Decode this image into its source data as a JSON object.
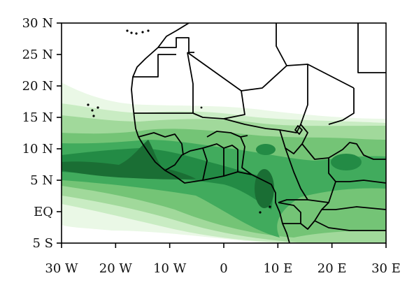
{
  "map": {
    "type": "filled-contour map",
    "region": "West Africa",
    "lon_range": [
      -30,
      30
    ],
    "lat_range": [
      -5,
      30
    ],
    "y_ticks": [
      {
        "value": 30,
        "label": "30 N"
      },
      {
        "value": 25,
        "label": "25 N"
      },
      {
        "value": 20,
        "label": "20 N"
      },
      {
        "value": 15,
        "label": "15 N"
      },
      {
        "value": 10,
        "label": "10 N"
      },
      {
        "value": 5,
        "label": "5 N"
      },
      {
        "value": 0,
        "label": "EQ"
      },
      {
        "value": -5,
        "label": "5 S"
      }
    ],
    "x_ticks": [
      {
        "value": -30,
        "label": "30 W"
      },
      {
        "value": -20,
        "label": "20 W"
      },
      {
        "value": -10,
        "label": "10 W"
      },
      {
        "value": 0,
        "label": "0"
      },
      {
        "value": 10,
        "label": "10 E"
      },
      {
        "value": 20,
        "label": "20 E"
      },
      {
        "value": 30,
        "label": "30 E"
      }
    ],
    "shading_colors": [
      "#eaf8e6",
      "#c9ecc3",
      "#a1d99b",
      "#74c476",
      "#41ab5d",
      "#238b45",
      "#1a6e34"
    ],
    "border_color": "#000000"
  }
}
